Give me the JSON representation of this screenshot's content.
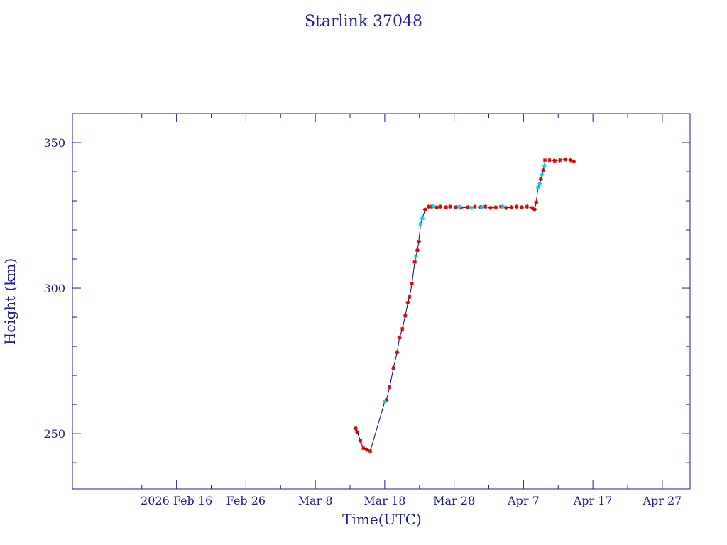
{
  "chart_data": {
    "type": "scatter",
    "title": "Starlink 37048",
    "xlabel": "Time(UTC)",
    "ylabel": "Height (km)",
    "x_tick_labels": [
      "2026 Feb 16",
      "Feb 26",
      "Mar  8",
      "Mar 18",
      "Mar 28",
      "Apr  7",
      "Apr 17",
      "Apr 27"
    ],
    "x_tick_dates": [
      "2026-02-16",
      "2026-02-26",
      "2026-03-08",
      "2026-03-18",
      "2026-03-28",
      "2026-04-07",
      "2026-04-17",
      "2026-04-27"
    ],
    "xlim": [
      "2026-02-01",
      "2026-05-01"
    ],
    "y_tick_labels": [
      "250",
      "300",
      "350"
    ],
    "y_ticks": [
      250,
      300,
      350
    ],
    "ylim": [
      231,
      360
    ],
    "colors": {
      "axis": "#1a1aa0",
      "trace": "#000080",
      "primary": "#dd0000",
      "secondary": "#00d8e8"
    },
    "series": [
      {
        "marker": "red-star",
        "points": [
          [
            "2026-03-13 19:00",
            251.8
          ],
          [
            "2026-03-14 01:00",
            250.5
          ],
          [
            "2026-03-14 12:00",
            247.5
          ],
          [
            "2026-03-14 22:00",
            245.0
          ],
          [
            "2026-03-15 10:00",
            244.5
          ],
          [
            "2026-03-15 22:00",
            244.0
          ],
          [
            "2026-03-18 06:00",
            261.5
          ],
          [
            "2026-03-18 17:00",
            266.0
          ],
          [
            "2026-03-19 06:00",
            272.5
          ],
          [
            "2026-03-19 19:00",
            278.0
          ],
          [
            "2026-03-20 03:00",
            283.0
          ],
          [
            "2026-03-20 13:00",
            286.0
          ],
          [
            "2026-03-20 23:00",
            290.5
          ],
          [
            "2026-03-21 08:00",
            295.0
          ],
          [
            "2026-03-21 14:00",
            297.0
          ],
          [
            "2026-03-21 22:00",
            301.5
          ],
          [
            "2026-03-22 08:00",
            309.0
          ],
          [
            "2026-03-22 17:00",
            313.0
          ],
          [
            "2026-03-22 22:00",
            316.0
          ],
          [
            "2026-03-23 20:00",
            327.0
          ],
          [
            "2026-03-24 08:00",
            328.0
          ],
          [
            "2026-03-24 18:00",
            328.0
          ],
          [
            "2026-03-25 12:00",
            327.8
          ],
          [
            "2026-03-26 00:00",
            328.0
          ],
          [
            "2026-03-26 20:00",
            327.8
          ],
          [
            "2026-03-27 10:00",
            328.0
          ],
          [
            "2026-03-28 06:00",
            327.8
          ],
          [
            "2026-03-29 00:00",
            327.6
          ],
          [
            "2026-03-30 00:00",
            327.8
          ],
          [
            "2026-03-31 00:00",
            328.0
          ],
          [
            "2026-03-31 18:00",
            327.8
          ],
          [
            "2026-04-01 12:00",
            328.0
          ],
          [
            "2026-04-02 06:00",
            327.6
          ],
          [
            "2026-04-03 00:00",
            327.8
          ],
          [
            "2026-04-03 18:00",
            328.0
          ],
          [
            "2026-04-04 12:00",
            327.6
          ],
          [
            "2026-04-05 06:00",
            327.8
          ],
          [
            "2026-04-06 00:00",
            328.0
          ],
          [
            "2026-04-06 18:00",
            327.8
          ],
          [
            "2026-04-07 12:00",
            328.0
          ],
          [
            "2026-04-08 06:00",
            327.6
          ],
          [
            "2026-04-08 14:00",
            327.0
          ],
          [
            "2026-04-08 20:00",
            329.5
          ],
          [
            "2026-04-09 12:00",
            337.5
          ],
          [
            "2026-04-09 20:00",
            340.5
          ],
          [
            "2026-04-10 02:00",
            344.0
          ],
          [
            "2026-04-10 18:00",
            344.0
          ],
          [
            "2026-04-11 12:00",
            343.8
          ],
          [
            "2026-04-12 06:00",
            344.0
          ],
          [
            "2026-04-13 00:00",
            344.2
          ],
          [
            "2026-04-13 18:00",
            344.0
          ],
          [
            "2026-04-14 06:00",
            343.6
          ]
        ]
      },
      {
        "marker": "cyan-star",
        "points": [
          [
            "2026-03-18 00:00",
            261.0
          ],
          [
            "2026-03-22 12:00",
            311.0
          ],
          [
            "2026-03-23 04:00",
            322.0
          ],
          [
            "2026-03-23 10:00",
            324.0
          ],
          [
            "2026-03-25 00:00",
            328.2
          ],
          [
            "2026-03-28 18:00",
            328.0
          ],
          [
            "2026-03-30 12:00",
            327.6
          ],
          [
            "2026-04-01 00:00",
            327.8
          ],
          [
            "2026-04-04 00:00",
            328.0
          ],
          [
            "2026-04-09 02:00",
            334.5
          ],
          [
            "2026-04-09 08:00",
            336.0
          ],
          [
            "2026-04-09 16:00",
            339.0
          ],
          [
            "2026-04-10 00:00",
            342.0
          ]
        ]
      }
    ]
  }
}
